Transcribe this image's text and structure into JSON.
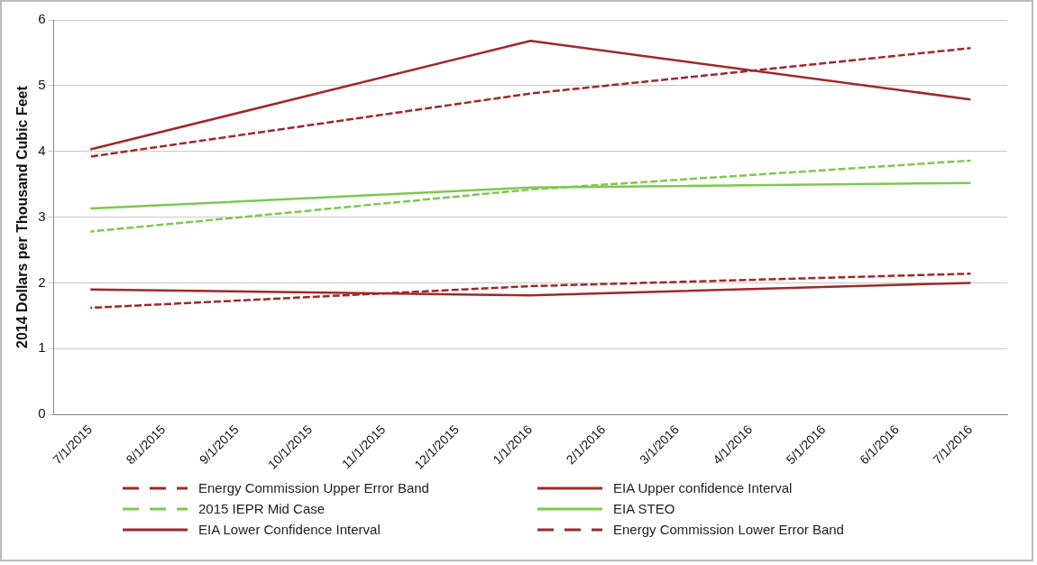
{
  "chart_data": {
    "type": "line",
    "ylabel": "2014 Dollars per Thousand Cubic Feet",
    "categories": [
      "7/1/2015",
      "8/1/2015",
      "9/1/2015",
      "10/1/2015",
      "11/1/2015",
      "12/1/2015",
      "1/1/2016",
      "2/1/2016",
      "3/1/2016",
      "4/1/2016",
      "5/1/2016",
      "6/1/2016",
      "7/1/2016"
    ],
    "ylim": [
      0,
      6
    ],
    "yticks": [
      0,
      1,
      2,
      3,
      4,
      5,
      6
    ],
    "grid": "y",
    "legend": "bottom",
    "marker": "none",
    "series": [
      {
        "name": "Energy Commission Upper Error Band",
        "color": "#a0282a",
        "line_style": "dashed",
        "values": [
          3.92,
          null,
          null,
          null,
          null,
          null,
          4.88,
          null,
          null,
          null,
          null,
          null,
          5.57
        ]
      },
      {
        "name": "EIA Upper confidence Interval",
        "color": "#a0282a",
        "line_style": "solid",
        "values": [
          4.03,
          null,
          null,
          null,
          null,
          null,
          5.68,
          null,
          null,
          null,
          null,
          null,
          4.79
        ]
      },
      {
        "name": "2015 IEPR Mid Case",
        "color": "#7ec850",
        "line_style": "dashed",
        "values": [
          2.78,
          null,
          null,
          null,
          null,
          null,
          3.42,
          null,
          null,
          null,
          null,
          null,
          3.86
        ]
      },
      {
        "name": "EIA STEO",
        "color": "#7ec850",
        "line_style": "solid",
        "values": [
          3.13,
          null,
          null,
          null,
          null,
          null,
          3.45,
          null,
          null,
          null,
          null,
          null,
          3.52
        ]
      },
      {
        "name": "EIA Lower Confidence Interval",
        "color": "#a0282a",
        "line_style": "solid",
        "values": [
          1.9,
          null,
          null,
          null,
          null,
          null,
          1.81,
          null,
          null,
          null,
          null,
          null,
          2.0
        ]
      },
      {
        "name": "Energy Commission Lower Error Band",
        "color": "#a0282a",
        "line_style": "dashed",
        "values": [
          1.62,
          null,
          null,
          null,
          null,
          null,
          1.95,
          null,
          null,
          null,
          null,
          null,
          2.14
        ]
      }
    ]
  }
}
